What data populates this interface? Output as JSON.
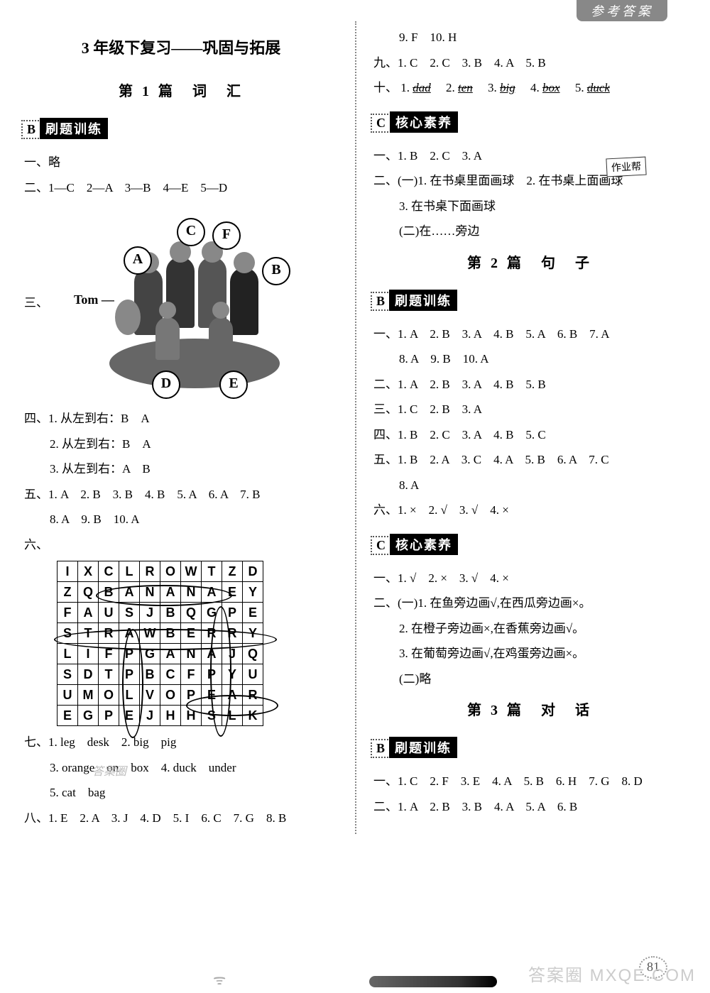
{
  "header": {
    "tab": "参考答案"
  },
  "page_number": "81",
  "watermark": "答案圈 MXQE.COM",
  "left": {
    "title_main": "3 年级下复习——巩固与拓展",
    "title_sub": "第 1 篇　词　汇",
    "sectionB": {
      "letter": "B",
      "tag": "刷题训练"
    },
    "q1": "一、略",
    "q2": "二、1—C　2—A　3—B　4—E　5—D",
    "q3_prefix": "三、",
    "diagram": {
      "tom": "Tom",
      "labels": [
        "A",
        "B",
        "C",
        "D",
        "E",
        "F"
      ]
    },
    "q4": {
      "prefix": "四、",
      "r1": "1. 从左到右：B　A",
      "r2": "2. 从左到右：B　A",
      "r3": "3. 从左到右：A　B"
    },
    "q5": {
      "prefix": "五、",
      "r1": "1. A　2. B　3. B　4. B　5. A　6. A　7. B",
      "r2": "8. A　9. B　10. A"
    },
    "q6_prefix": "六、",
    "grid": [
      [
        "I",
        "X",
        "C",
        "L",
        "R",
        "O",
        "W",
        "T",
        "Z",
        "D"
      ],
      [
        "Z",
        "Q",
        "B",
        "A",
        "N",
        "A",
        "N",
        "A",
        "E",
        "Y"
      ],
      [
        "F",
        "A",
        "U",
        "S",
        "J",
        "B",
        "Q",
        "G",
        "P",
        "E"
      ],
      [
        "S",
        "T",
        "R",
        "A",
        "W",
        "B",
        "E",
        "R",
        "R",
        "Y"
      ],
      [
        "L",
        "I",
        "F",
        "P",
        "G",
        "A",
        "N",
        "A",
        "J",
        "Q"
      ],
      [
        "S",
        "D",
        "T",
        "P",
        "B",
        "C",
        "F",
        "P",
        "Y",
        "U"
      ],
      [
        "U",
        "M",
        "O",
        "L",
        "V",
        "O",
        "P",
        "E",
        "A",
        "R"
      ],
      [
        "E",
        "G",
        "P",
        "E",
        "J",
        "H",
        "H",
        "S",
        "L",
        "K"
      ]
    ],
    "q7": {
      "prefix": "七、",
      "r1": "1. leg　desk　2. big　pig",
      "r2": "3. orange　on　box　4. duck　under",
      "r3": "5. cat　bag"
    },
    "faded1": "作业帮",
    "faded2": "答案圈",
    "q8": {
      "prefix": "八、",
      "r1": "1. E　2. A　3. J　4. D　5. I　6. C　7. G　8. B"
    }
  },
  "right": {
    "q8b": "9. F　10. H",
    "q9": "九、1. C　2. C　3. B　4. A　5. B",
    "q10": {
      "prefix": "十、",
      "items": [
        "1.",
        "dad",
        "2.",
        "ten",
        "3.",
        "big",
        "4.",
        "box",
        "5.",
        "duck"
      ]
    },
    "sectionC": {
      "letter": "C",
      "tag": "核心素养"
    },
    "c_q1": "一、1. B　2. C　3. A",
    "c_q2": {
      "prefix": "二、",
      "r1a": "(一)1. 在书桌里面画球",
      "r1b": "2. 在书桌上面画球",
      "r2": "3. 在书桌下面画球",
      "r3": "(二)在……旁边"
    },
    "handnote": "作业帮",
    "title_sub2": "第 2 篇　句　子",
    "sectionB2": {
      "letter": "B",
      "tag": "刷题训练"
    },
    "b2_q1": {
      "prefix": "一、",
      "r1": "1. A　2. B　3. A　4. B　5. A　6. B　7. A",
      "r2": "8. A　9. B　10. A"
    },
    "b2_q2": "二、1. A　2. B　3. A　4. B　5. B",
    "b2_q3": "三、1. C　2. B　3. A",
    "b2_q4": "四、1. B　2. C　3. A　4. B　5. C",
    "b2_q5": {
      "prefix": "五、",
      "r1": "1. B　2. A　3. C　4. A　5. B　6. A　7. C",
      "r2": "8. A"
    },
    "b2_q6": "六、1. ×　2. √　3. √　4. ×",
    "sectionC2": {
      "letter": "C",
      "tag": "核心素养"
    },
    "c2_q1": "一、1. √　2. ×　3. √　4. ×",
    "c2_q2": {
      "prefix": "二、",
      "r1": "(一)1. 在鱼旁边画√,在西瓜旁边画×。",
      "r2": "2. 在橙子旁边画×,在香蕉旁边画√。",
      "r3": "3. 在葡萄旁边画√,在鸡蛋旁边画×。",
      "r4": "(二)略"
    },
    "title_sub3": "第 3 篇　对　话",
    "sectionB3": {
      "letter": "B",
      "tag": "刷题训练"
    },
    "b3_q1": "一、1. C　2. F　3. E　4. A　5. B　6. H　7. G　8. D",
    "b3_q2": "二、1. A　2. B　3. B　4. A　5. A　6. B"
  }
}
